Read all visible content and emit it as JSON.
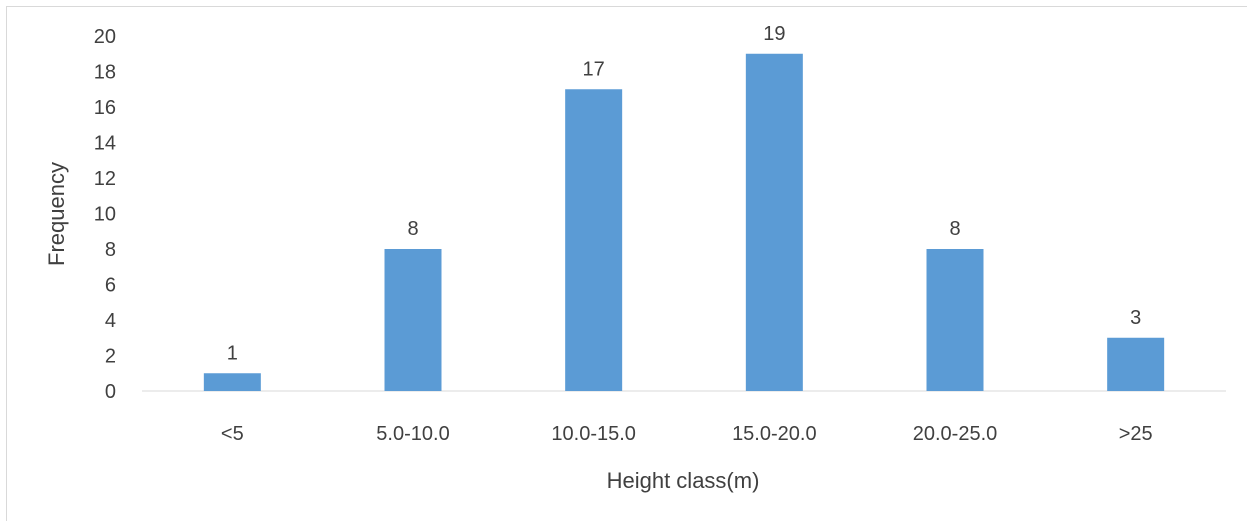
{
  "chart_data": {
    "type": "bar",
    "categories": [
      "<5",
      "5.0-10.0",
      "10.0-15.0",
      "15.0-20.0",
      "20.0-25.0",
      ">25"
    ],
    "values": [
      1,
      8,
      17,
      19,
      8,
      3
    ],
    "data_labels": [
      "1",
      "8",
      "17",
      "19",
      "8",
      "3"
    ],
    "title": "",
    "xlabel": "Height class(m)",
    "ylabel": "Frequency",
    "ylim": [
      0,
      20
    ],
    "yticks": [
      "0",
      "2",
      "4",
      "6",
      "8",
      "10",
      "12",
      "14",
      "16",
      "18",
      "20"
    ],
    "grid": false,
    "bar_color": "#5b9bd5"
  }
}
